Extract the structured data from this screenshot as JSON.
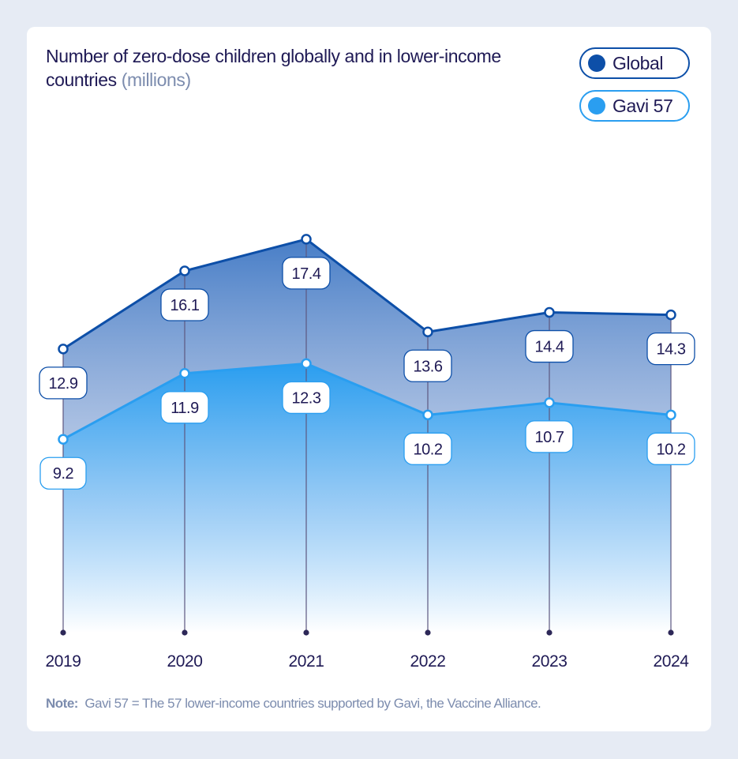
{
  "title": {
    "main": "Number of zero-dose children globally and in lower-income countries",
    "unit": "(millions)"
  },
  "legend": {
    "global": "Global",
    "gavi": "Gavi 57"
  },
  "note": {
    "label": "Note:",
    "text": "Gavi 57 = The 57 lower-income countries supported by Gavi, the Vaccine Alliance."
  },
  "colors": {
    "global": "#0d4fa8",
    "gavi": "#2a9ef0",
    "text": "#1f1a55",
    "muted": "#7c8cae"
  },
  "chart_data": {
    "type": "area",
    "title": "Number of zero-dose children globally and in lower-income countries (millions)",
    "categories": [
      "2019",
      "2020",
      "2021",
      "2022",
      "2023",
      "2024"
    ],
    "series": [
      {
        "name": "Global",
        "values": [
          12.9,
          16.1,
          17.4,
          13.6,
          14.4,
          14.3
        ],
        "labels": [
          "12.9",
          "16.1",
          "17.4",
          "13.6",
          "14.4",
          "14.3"
        ]
      },
      {
        "name": "Gavi 57",
        "values": [
          9.2,
          11.9,
          12.3,
          10.2,
          10.7,
          10.2
        ],
        "labels": [
          "9.2",
          "11.9",
          "12.3",
          "10.2",
          "10.7",
          "10.2"
        ]
      }
    ],
    "xlabel": "",
    "ylabel": "",
    "ylim": [
      0,
      20
    ],
    "grid": false,
    "legend_position": "top-right"
  }
}
